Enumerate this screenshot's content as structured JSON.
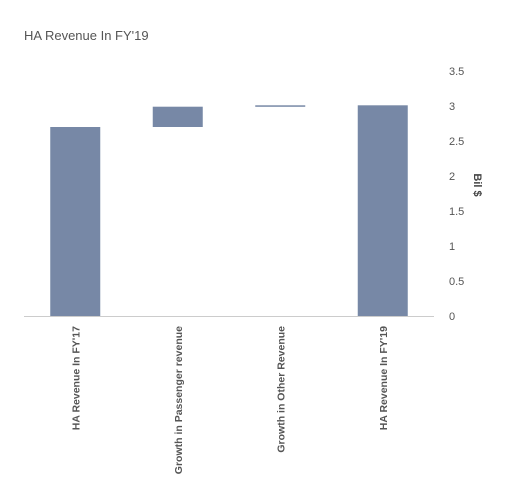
{
  "chart_data": {
    "type": "bar",
    "subtype": "waterfall",
    "title": "HA Revenue In FY'19",
    "xlabel": "",
    "ylabel": "Bil $",
    "ylim": [
      0,
      3.5
    ],
    "yticks": [
      "0",
      "0.5",
      "1",
      "1.5",
      "2",
      "2.5",
      "3",
      "3.5"
    ],
    "y_axis_position": "right",
    "grid": false,
    "legend": "none",
    "bar_color": "#7788a6",
    "categories": [
      "HA Revenue In FY'17",
      "Growth in Passenger revenue",
      "Growth in Other Revenue",
      "HA Revenue In FY'19"
    ],
    "bars": [
      {
        "category": "HA Revenue In FY'17",
        "base": 0,
        "value": 2.7
      },
      {
        "category": "Growth in Passenger revenue",
        "base": 2.7,
        "value": 0.29
      },
      {
        "category": "Growth in Other Revenue",
        "base": 2.99,
        "value": 0.02
      },
      {
        "category": "HA Revenue In FY'19",
        "base": 0,
        "value": 3.01
      }
    ]
  }
}
